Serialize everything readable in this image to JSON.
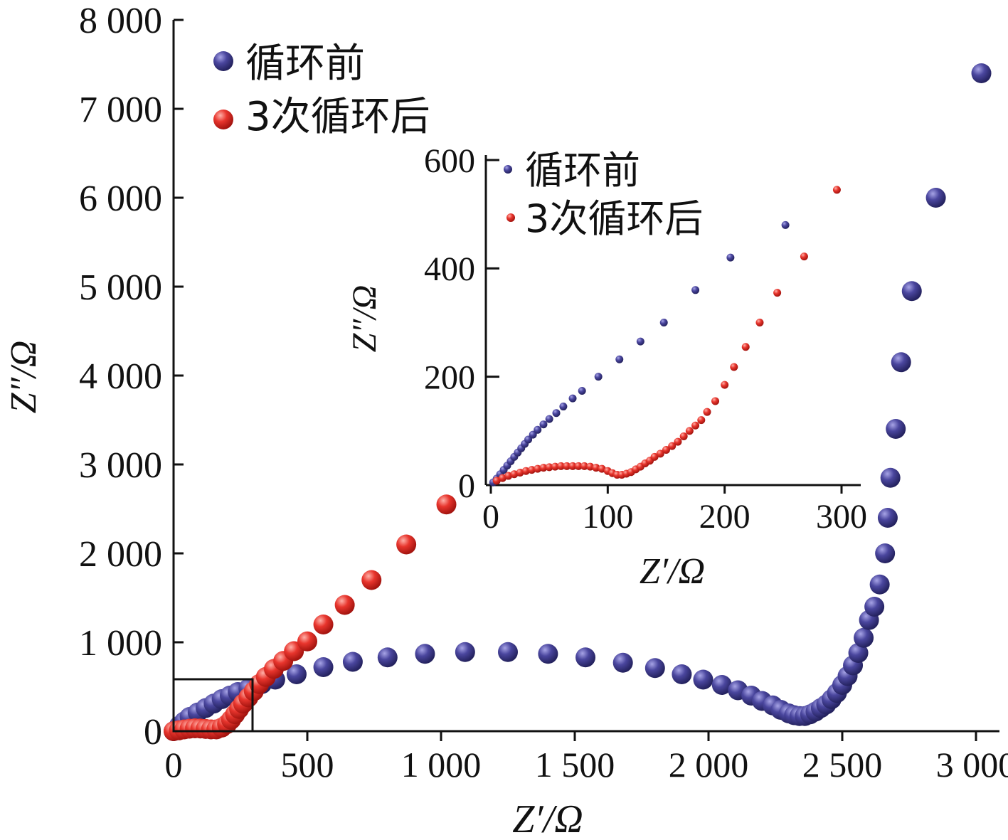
{
  "chart_data": [
    {
      "type": "scatter",
      "role": "main",
      "xlabel": "Z′/Ω",
      "ylabel": "Z″/Ω",
      "xlim": [
        0,
        3100
      ],
      "ylim": [
        0,
        8000
      ],
      "xticks": [
        0,
        500,
        1000,
        1500,
        2000,
        2500,
        3000
      ],
      "xtick_labels": [
        "0",
        "500",
        "1 000",
        "1 500",
        "2 000",
        "2 500",
        "3 000"
      ],
      "yticks": [
        0,
        1000,
        2000,
        3000,
        4000,
        5000,
        6000,
        7000,
        8000
      ],
      "ytick_labels": [
        "0",
        "1 000",
        "2 000",
        "3 000",
        "4 000",
        "5 000",
        "6 000",
        "7 000",
        "8 000"
      ],
      "legend": "top-left",
      "grid": false,
      "series": [
        {
          "name": "循环前",
          "color": "#3b3a8f",
          "x": [
            0,
            20,
            40,
            60,
            90,
            120,
            150,
            180,
            210,
            240,
            280,
            330,
            380,
            460,
            560,
            670,
            800,
            940,
            1090,
            1250,
            1400,
            1540,
            1680,
            1800,
            1900,
            1980,
            2050,
            2110,
            2160,
            2200,
            2240,
            2270,
            2300,
            2320,
            2340,
            2360,
            2380,
            2400,
            2420,
            2440,
            2460,
            2480,
            2500,
            2520,
            2540,
            2560,
            2580,
            2600,
            2620,
            2640,
            2660,
            2670,
            2680,
            2700,
            2720,
            2760,
            2850,
            3020
          ],
          "y": [
            0,
            60,
            110,
            160,
            210,
            260,
            310,
            360,
            400,
            440,
            480,
            530,
            580,
            640,
            720,
            780,
            830,
            870,
            890,
            890,
            870,
            830,
            770,
            710,
            640,
            580,
            520,
            460,
            400,
            340,
            290,
            240,
            200,
            180,
            170,
            170,
            190,
            220,
            260,
            300,
            360,
            430,
            520,
            620,
            740,
            880,
            1050,
            1250,
            1400,
            1650,
            2000,
            2400,
            2850,
            3400,
            4150,
            4950,
            6000,
            7400
          ]
        },
        {
          "name": "3次循环后",
          "color": "#e02d28",
          "x": [
            0,
            20,
            40,
            60,
            80,
            100,
            120,
            140,
            160,
            180,
            200,
            215,
            230,
            245,
            260,
            280,
            300,
            320,
            345,
            375,
            410,
            450,
            500,
            560,
            640,
            740,
            870,
            1020
          ],
          "y": [
            0,
            10,
            20,
            28,
            32,
            30,
            25,
            20,
            20,
            40,
            80,
            130,
            190,
            250,
            310,
            380,
            450,
            530,
            610,
            700,
            790,
            900,
            1010,
            1200,
            1420,
            1700,
            2100,
            2550
          ]
        }
      ]
    },
    {
      "type": "scatter",
      "role": "inset",
      "xlabel": "Z′/Ω",
      "ylabel": "Z″/Ω",
      "xlim": [
        0,
        310
      ],
      "ylim": [
        0,
        600
      ],
      "xticks": [
        0,
        100,
        200,
        300
      ],
      "xtick_labels": [
        "0",
        "100",
        "200",
        "300"
      ],
      "yticks": [
        0,
        200,
        400,
        600
      ],
      "ytick_labels": [
        "0",
        "200",
        "400",
        "600"
      ],
      "legend": "top-left",
      "grid": false,
      "series": [
        {
          "name": "循环前",
          "color": "#3b3a8f",
          "x": [
            2,
            5,
            8,
            11,
            14,
            17,
            20,
            23,
            26,
            29,
            32,
            36,
            40,
            45,
            50,
            56,
            62,
            70,
            78,
            92,
            110,
            128,
            148,
            175,
            205,
            252
          ],
          "y": [
            5,
            12,
            20,
            28,
            36,
            44,
            52,
            60,
            68,
            76,
            84,
            93,
            102,
            112,
            122,
            133,
            145,
            160,
            174,
            200,
            232,
            265,
            300,
            360,
            420,
            480
          ]
        },
        {
          "name": "3次循环后",
          "color": "#e02d28",
          "x": [
            5,
            10,
            15,
            20,
            25,
            30,
            35,
            40,
            45,
            50,
            55,
            60,
            65,
            70,
            75,
            80,
            85,
            90,
            95,
            100,
            104,
            108,
            112,
            116,
            120,
            124,
            128,
            132,
            136,
            140,
            145,
            150,
            155,
            160,
            165,
            170,
            175,
            180,
            185,
            192,
            200,
            208,
            218,
            230,
            245,
            268,
            296
          ],
          "y": [
            8,
            13,
            17,
            20,
            23,
            26,
            28,
            30,
            32,
            33,
            34,
            35,
            35,
            35,
            35,
            35,
            34,
            32,
            30,
            26,
            22,
            19,
            19,
            21,
            24,
            29,
            34,
            40,
            45,
            52,
            58,
            65,
            72,
            80,
            90,
            100,
            110,
            120,
            135,
            155,
            185,
            218,
            255,
            300,
            355,
            422,
            545
          ]
        }
      ]
    }
  ]
}
